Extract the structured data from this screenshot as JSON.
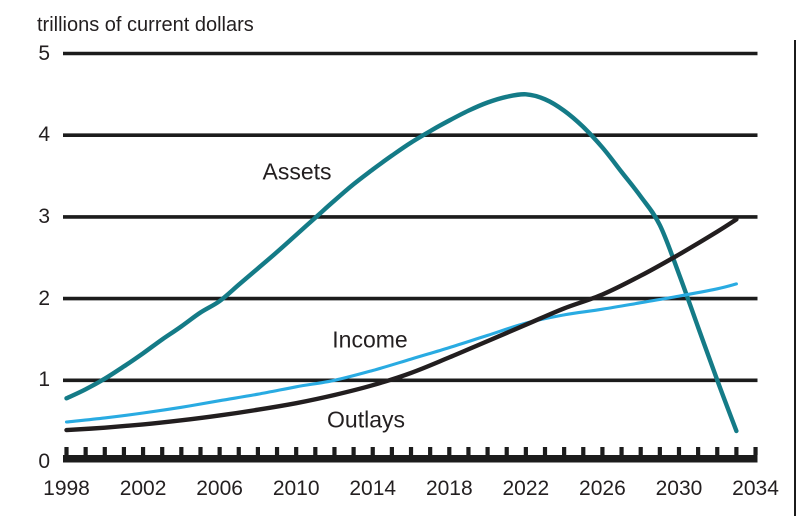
{
  "figure": {
    "background": "#ffffff"
  },
  "chart_data": {
    "type": "line",
    "title": "trillions of current dollars",
    "xlabel": "",
    "ylabel": "trillions of current dollars",
    "xlim": [
      1998,
      2034
    ],
    "ylim": [
      0,
      5
    ],
    "grid": "horizontal-black-lines-at-integers",
    "legend": "inline-labels-next-to-lines",
    "x_ticklabels": [
      "1998",
      "2002",
      "2006",
      "2010",
      "2014",
      "2018",
      "2022",
      "2026",
      "2030",
      "2034"
    ],
    "x_minor_ticks_every_year": true,
    "y_ticklabels": [
      "0",
      "1",
      "2",
      "3",
      "4",
      "5"
    ],
    "colors": {
      "assets": "#147b87",
      "income": "#29abe2",
      "outlays": "#221e1f",
      "grid": "#1c1c1c",
      "text": "#231f20"
    },
    "series": [
      {
        "name": "Assets",
        "key": "assets",
        "color": "#147b87",
        "points": [
          [
            1998,
            0.78
          ],
          [
            1999,
            0.89
          ],
          [
            2000,
            1.02
          ],
          [
            2001,
            1.17
          ],
          [
            2002,
            1.33
          ],
          [
            2003,
            1.5
          ],
          [
            2004,
            1.66
          ],
          [
            2005,
            1.83
          ],
          [
            2006,
            1.97
          ],
          [
            2007,
            2.17
          ],
          [
            2008,
            2.37
          ],
          [
            2009,
            2.57
          ],
          [
            2010,
            2.78
          ],
          [
            2011,
            2.99
          ],
          [
            2012,
            3.2
          ],
          [
            2013,
            3.4
          ],
          [
            2014,
            3.58
          ],
          [
            2015,
            3.75
          ],
          [
            2016,
            3.91
          ],
          [
            2017,
            4.05
          ],
          [
            2018,
            4.18
          ],
          [
            2019,
            4.3
          ],
          [
            2020,
            4.4
          ],
          [
            2021,
            4.47
          ],
          [
            2022,
            4.5
          ],
          [
            2023,
            4.44
          ],
          [
            2024,
            4.3
          ],
          [
            2025,
            4.1
          ],
          [
            2026,
            3.85
          ],
          [
            2027,
            3.55
          ],
          [
            2028,
            3.25
          ],
          [
            2029,
            2.9
          ],
          [
            2030,
            2.3
          ],
          [
            2031,
            1.65
          ],
          [
            2032,
            1.0
          ],
          [
            2033,
            0.38
          ]
        ]
      },
      {
        "name": "Income",
        "key": "income",
        "color": "#29abe2",
        "points": [
          [
            1998,
            0.49
          ],
          [
            2000,
            0.54
          ],
          [
            2002,
            0.6
          ],
          [
            2004,
            0.67
          ],
          [
            2006,
            0.75
          ],
          [
            2008,
            0.83
          ],
          [
            2010,
            0.92
          ],
          [
            2012,
            1.0
          ],
          [
            2014,
            1.12
          ],
          [
            2016,
            1.26
          ],
          [
            2018,
            1.4
          ],
          [
            2020,
            1.55
          ],
          [
            2022,
            1.7
          ],
          [
            2024,
            1.8
          ],
          [
            2026,
            1.87
          ],
          [
            2028,
            1.95
          ],
          [
            2030,
            2.03
          ],
          [
            2032,
            2.12
          ],
          [
            2033,
            2.18
          ]
        ]
      },
      {
        "name": "Outlays",
        "key": "outlays",
        "color": "#221e1f",
        "points": [
          [
            1998,
            0.39
          ],
          [
            2000,
            0.42
          ],
          [
            2002,
            0.46
          ],
          [
            2004,
            0.51
          ],
          [
            2006,
            0.57
          ],
          [
            2008,
            0.64
          ],
          [
            2010,
            0.72
          ],
          [
            2012,
            0.82
          ],
          [
            2014,
            0.94
          ],
          [
            2016,
            1.09
          ],
          [
            2018,
            1.28
          ],
          [
            2020,
            1.48
          ],
          [
            2022,
            1.68
          ],
          [
            2024,
            1.88
          ],
          [
            2026,
            2.05
          ],
          [
            2028,
            2.28
          ],
          [
            2030,
            2.54
          ],
          [
            2032,
            2.82
          ],
          [
            2033,
            2.97
          ]
        ]
      }
    ]
  }
}
